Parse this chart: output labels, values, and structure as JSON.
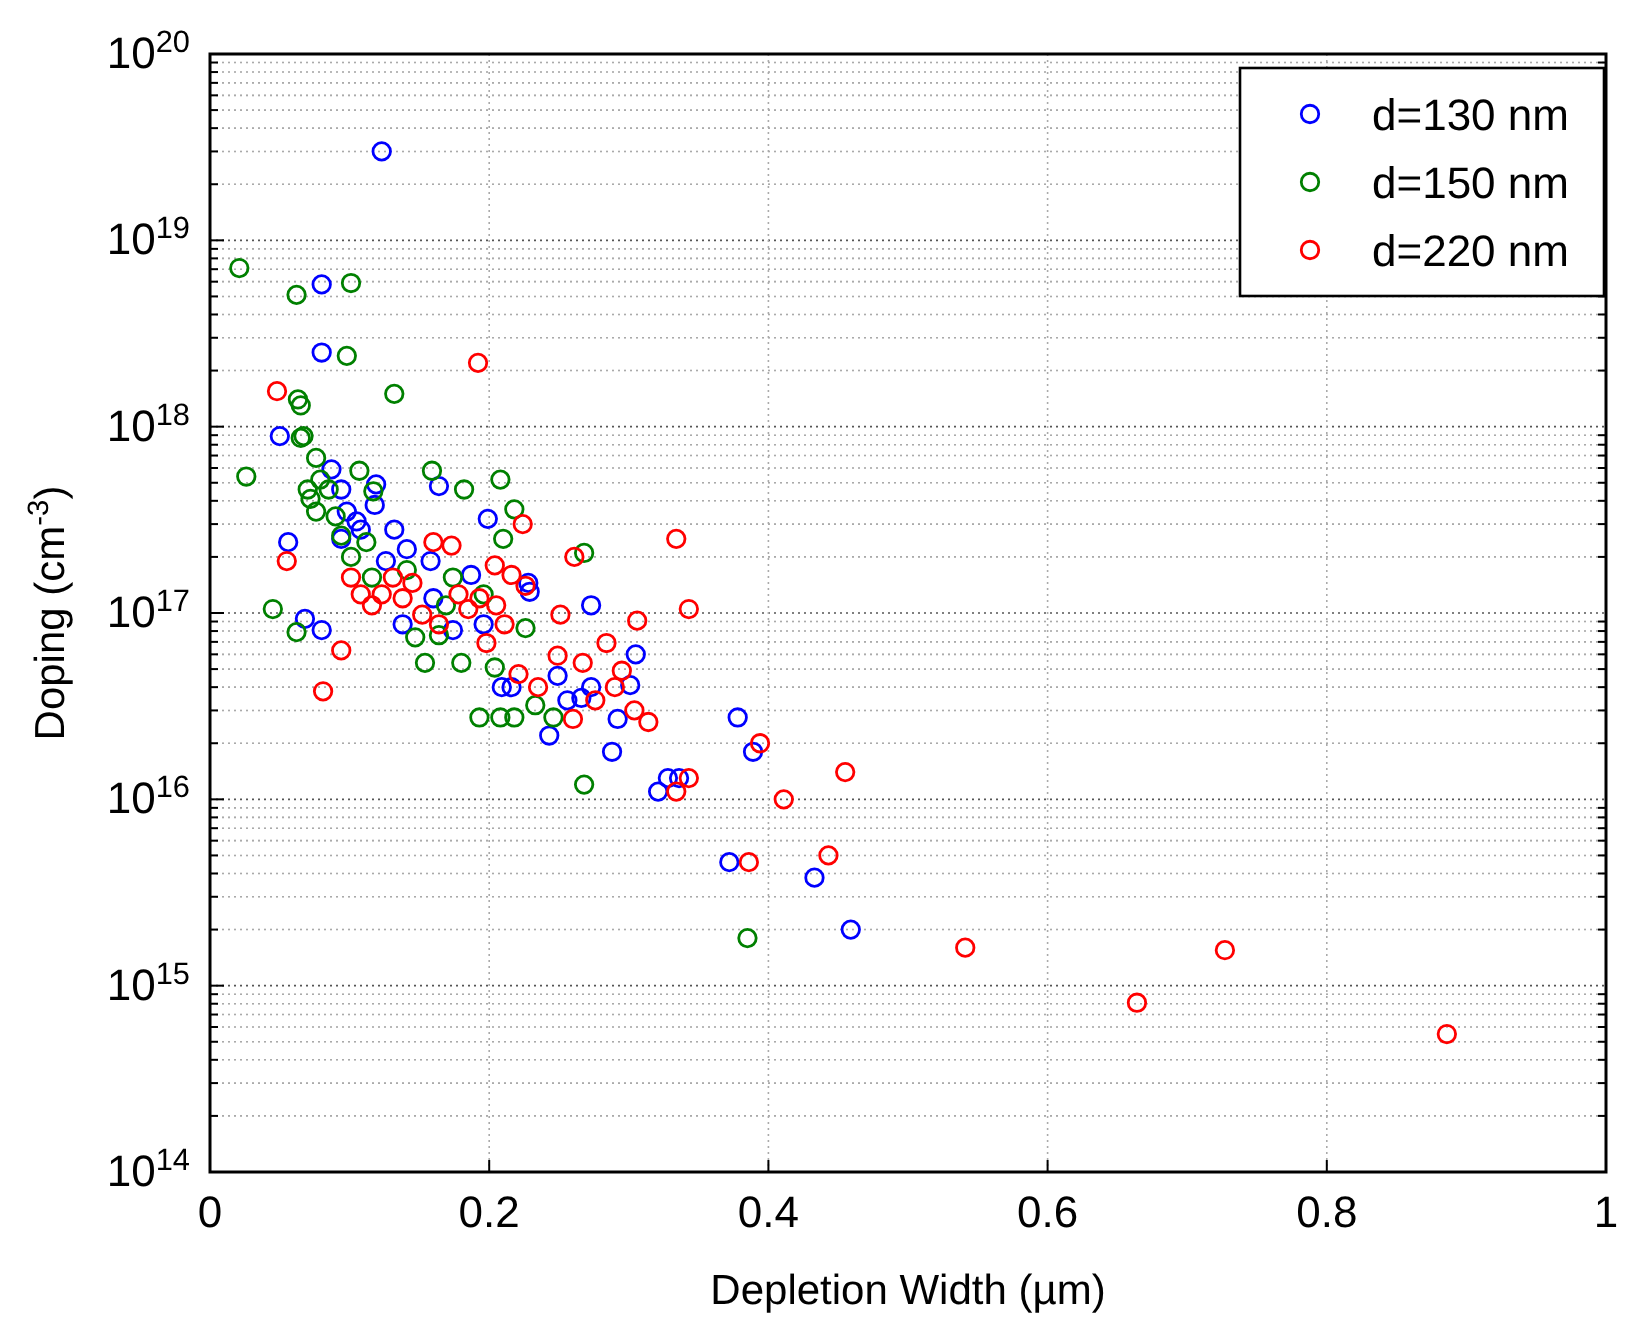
{
  "chart_data": {
    "type": "scatter",
    "xlabel": "Depletion Width (µm)",
    "ylabel": "Doping (cm$^{-3}$)",
    "log": "y",
    "grid": true,
    "legend": "top right",
    "marker": "circle",
    "xlim": [
      0,
      1
    ],
    "xticks": [
      0,
      0.2,
      0.4,
      0.6,
      0.8,
      1
    ],
    "ylim": [
      100000000000000.0,
      1e+20
    ],
    "yticks": [
      {
        "value": 100000000000000.0,
        "label": "10$^{14}$"
      },
      {
        "value": 1000000000000000.0,
        "label": "10$^{15}$"
      },
      {
        "value": 1e+16,
        "label": "10$^{16}$"
      },
      {
        "value": 1e+17,
        "label": "10$^{17}$"
      },
      {
        "value": 1e+18,
        "label": "10$^{18}$"
      },
      {
        "value": 1e+19,
        "label": "10$^{19}$"
      },
      {
        "value": 1e+20,
        "label": "10$^{20}$"
      }
    ],
    "series": [
      {
        "name": "d=130 nm",
        "color": "#0000ff",
        "x": [
          0.123,
          0.08,
          0.08,
          0.05,
          0.056,
          0.068,
          0.08,
          0.087,
          0.094,
          0.098,
          0.105,
          0.108,
          0.118,
          0.119,
          0.132,
          0.141,
          0.126,
          0.138,
          0.158,
          0.164,
          0.187,
          0.199,
          0.174,
          0.196,
          0.209,
          0.216,
          0.228,
          0.229,
          0.243,
          0.249,
          0.256,
          0.266,
          0.273,
          0.273,
          0.288,
          0.292,
          0.301,
          0.305,
          0.321,
          0.328,
          0.336,
          0.372,
          0.378,
          0.389,
          0.433,
          0.459,
          0.094,
          0.16
        ],
        "values": [
          3e+19,
          5.8e+18,
          2.5e+18,
          8.9e+17,
          2.4e+17,
          9.3e+16,
          8.1e+16,
          5.9e+17,
          4.6e+17,
          3.5e+17,
          3.1e+17,
          2.8e+17,
          3.8e+17,
          4.9e+17,
          2.8e+17,
          2.2e+17,
          1.9e+17,
          8.7e+16,
          1.9e+17,
          4.8e+17,
          1.6e+17,
          3.2e+17,
          8.1e+16,
          8.7e+16,
          4e+16,
          4e+16,
          1.45e+17,
          1.3e+17,
          2.2e+16,
          4.6e+16,
          3.4e+16,
          3.5e+16,
          1.1e+17,
          4e+16,
          1.8e+16,
          2.7e+16,
          4.1e+16,
          6e+16,
          1.1e+16,
          1.3e+16,
          1.3e+16,
          4600000000000000.0,
          2.75e+16,
          1.8e+16,
          3800000000000000.0,
          2000000000000000.0,
          2.5e+17,
          1.2e+17
        ]
      },
      {
        "name": "d=150 nm",
        "color": "#008000",
        "x": [
          0.021,
          0.062,
          0.101,
          0.098,
          0.132,
          0.063,
          0.065,
          0.065,
          0.067,
          0.026,
          0.045,
          0.062,
          0.076,
          0.079,
          0.07,
          0.072,
          0.076,
          0.085,
          0.09,
          0.094,
          0.107,
          0.117,
          0.101,
          0.112,
          0.116,
          0.141,
          0.147,
          0.154,
          0.159,
          0.182,
          0.18,
          0.169,
          0.174,
          0.208,
          0.21,
          0.218,
          0.193,
          0.204,
          0.208,
          0.218,
          0.226,
          0.233,
          0.246,
          0.268,
          0.268,
          0.385,
          0.164,
          0.196
        ],
        "values": [
          7.1e+18,
          5.1e+18,
          5.9e+18,
          2.4e+18,
          1.5e+18,
          1.4e+18,
          1.3e+18,
          8.7e+17,
          8.9e+17,
          5.4e+17,
          1.05e+17,
          7.9e+16,
          6.8e+17,
          5.2e+17,
          4.6e+17,
          4.1e+17,
          3.5e+17,
          4.6e+17,
          3.3e+17,
          2.6e+17,
          5.8e+17,
          4.5e+17,
          2e+17,
          2.4e+17,
          1.55e+17,
          1.7e+17,
          7.4e+16,
          5.4e+16,
          5.8e+17,
          4.6e+17,
          5.4e+16,
          1.1e+17,
          1.55e+17,
          5.2e+17,
          2.5e+17,
          3.6e+17,
          2.75e+16,
          5.1e+16,
          2.75e+16,
          2.75e+16,
          8.3e+16,
          3.2e+16,
          2.75e+16,
          2.1e+17,
          1.2e+16,
          1800000000000000.0,
          7.6e+16,
          1.26e+17
        ]
      },
      {
        "name": "d=220 nm",
        "color": "#ff0000",
        "x": [
          0.192,
          0.048,
          0.055,
          0.081,
          0.094,
          0.101,
          0.108,
          0.116,
          0.123,
          0.131,
          0.138,
          0.145,
          0.152,
          0.16,
          0.164,
          0.173,
          0.178,
          0.185,
          0.193,
          0.198,
          0.204,
          0.205,
          0.211,
          0.216,
          0.224,
          0.226,
          0.221,
          0.235,
          0.249,
          0.251,
          0.26,
          0.261,
          0.267,
          0.276,
          0.284,
          0.29,
          0.295,
          0.304,
          0.306,
          0.314,
          0.334,
          0.334,
          0.343,
          0.343,
          0.386,
          0.394,
          0.411,
          0.443,
          0.455,
          0.541,
          0.664,
          0.727,
          0.886
        ],
        "values": [
          2.2e+18,
          1.55e+18,
          1.9e+17,
          3.8e+16,
          6.3e+16,
          1.55e+17,
          1.26e+17,
          1.1e+17,
          1.26e+17,
          1.55e+17,
          1.2e+17,
          1.45e+17,
          9.8e+16,
          2.4e+17,
          8.7e+16,
          2.3e+17,
          1.26e+17,
          1.05e+17,
          1.2e+17,
          6.9e+16,
          1.8e+17,
          1.1e+17,
          8.7e+16,
          1.6e+17,
          3e+17,
          1.4e+17,
          4.7e+16,
          4e+16,
          5.9e+16,
          9.8e+16,
          2.7e+16,
          2e+17,
          5.4e+16,
          3.4e+16,
          6.9e+16,
          4e+16,
          4.9e+16,
          3e+16,
          9.1e+16,
          2.6e+16,
          2.5e+17,
          1.1e+16,
          1.3e+16,
          1.05e+17,
          4600000000000000.0,
          2e+16,
          1e+16,
          5000000000000000.0,
          1.4e+16,
          1600000000000000.0,
          810000000000000.0,
          1550000000000000.0,
          550000000000000.0
        ]
      }
    ]
  }
}
